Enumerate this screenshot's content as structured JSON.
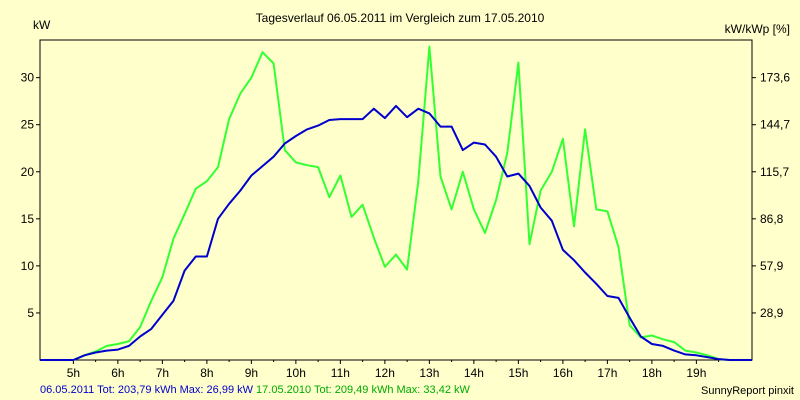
{
  "chart_data": {
    "type": "line",
    "title": "Tagesverlauf 06.05.2011 im Vergleich zum 17.05.2010",
    "ylabel_left": "kW",
    "ylabel_right": "kW/kWp [%]",
    "x_ticks": [
      "5h",
      "6h",
      "7h",
      "8h",
      "9h",
      "10h",
      "11h",
      "12h",
      "13h",
      "14h",
      "15h",
      "16h",
      "17h",
      "18h",
      "19h"
    ],
    "x_range_hours": [
      4.25,
      20.25
    ],
    "y_range": [
      0,
      34
    ],
    "y_ticks": [
      5,
      10,
      15,
      20,
      25,
      30
    ],
    "y2_ticks": [
      "28,9",
      "57,9",
      "86,8",
      "115,7",
      "144,7",
      "173,6"
    ],
    "series": [
      {
        "name": "06.05.2011",
        "color": "#0000cc",
        "points": [
          [
            4.25,
            0
          ],
          [
            5.0,
            0
          ],
          [
            5.25,
            0.5
          ],
          [
            5.5,
            0.8
          ],
          [
            5.75,
            1.0
          ],
          [
            6.0,
            1.1
          ],
          [
            6.25,
            1.5
          ],
          [
            6.5,
            2.5
          ],
          [
            6.75,
            3.3
          ],
          [
            7.0,
            4.8
          ],
          [
            7.25,
            6.3
          ],
          [
            7.5,
            9.5
          ],
          [
            7.75,
            11.0
          ],
          [
            8.0,
            11.0
          ],
          [
            8.25,
            15.0
          ],
          [
            8.5,
            16.6
          ],
          [
            8.75,
            18.0
          ],
          [
            9.0,
            19.6
          ],
          [
            9.25,
            20.6
          ],
          [
            9.5,
            21.6
          ],
          [
            9.75,
            23.0
          ],
          [
            10.0,
            23.8
          ],
          [
            10.25,
            24.5
          ],
          [
            10.5,
            24.9
          ],
          [
            10.75,
            25.5
          ],
          [
            11.0,
            25.6
          ],
          [
            11.25,
            25.6
          ],
          [
            11.5,
            25.6
          ],
          [
            11.75,
            26.7
          ],
          [
            12.0,
            25.7
          ],
          [
            12.25,
            27.0
          ],
          [
            12.5,
            25.8
          ],
          [
            12.75,
            26.7
          ],
          [
            13.0,
            26.2
          ],
          [
            13.25,
            24.8
          ],
          [
            13.5,
            24.8
          ],
          [
            13.75,
            22.3
          ],
          [
            14.0,
            23.1
          ],
          [
            14.25,
            22.9
          ],
          [
            14.5,
            21.6
          ],
          [
            14.75,
            19.5
          ],
          [
            15.0,
            19.8
          ],
          [
            15.25,
            18.5
          ],
          [
            15.5,
            16.2
          ],
          [
            15.75,
            14.8
          ],
          [
            16.0,
            11.7
          ],
          [
            16.25,
            10.6
          ],
          [
            16.5,
            9.3
          ],
          [
            16.75,
            8.1
          ],
          [
            17.0,
            6.8
          ],
          [
            17.25,
            6.6
          ],
          [
            17.5,
            4.5
          ],
          [
            17.75,
            2.5
          ],
          [
            18.0,
            1.7
          ],
          [
            18.25,
            1.5
          ],
          [
            18.5,
            1.0
          ],
          [
            18.75,
            0.6
          ],
          [
            19.0,
            0.5
          ],
          [
            19.25,
            0.3
          ],
          [
            19.5,
            0.1
          ],
          [
            19.75,
            0
          ],
          [
            20.25,
            0
          ]
        ]
      },
      {
        "name": "17.05.2010",
        "color": "#33ff33",
        "points": [
          [
            4.25,
            0
          ],
          [
            5.0,
            0
          ],
          [
            5.25,
            0.5
          ],
          [
            5.5,
            0.9
          ],
          [
            5.75,
            1.5
          ],
          [
            6.0,
            1.7
          ],
          [
            6.25,
            2.0
          ],
          [
            6.5,
            3.5
          ],
          [
            6.75,
            6.3
          ],
          [
            7.0,
            8.8
          ],
          [
            7.25,
            12.9
          ],
          [
            7.5,
            15.5
          ],
          [
            7.75,
            18.2
          ],
          [
            8.0,
            19.0
          ],
          [
            8.25,
            20.5
          ],
          [
            8.5,
            25.6
          ],
          [
            8.75,
            28.3
          ],
          [
            9.0,
            30.0
          ],
          [
            9.25,
            32.7
          ],
          [
            9.5,
            31.5
          ],
          [
            9.75,
            22.3
          ],
          [
            10.0,
            21.0
          ],
          [
            10.25,
            20.7
          ],
          [
            10.5,
            20.5
          ],
          [
            10.75,
            17.3
          ],
          [
            11.0,
            19.6
          ],
          [
            11.25,
            15.2
          ],
          [
            11.5,
            16.5
          ],
          [
            11.75,
            13.0
          ],
          [
            12.0,
            9.9
          ],
          [
            12.25,
            11.2
          ],
          [
            12.5,
            9.6
          ],
          [
            12.75,
            19.0
          ],
          [
            13.0,
            33.3
          ],
          [
            13.25,
            19.5
          ],
          [
            13.5,
            16.0
          ],
          [
            13.75,
            20.0
          ],
          [
            14.0,
            16.0
          ],
          [
            14.25,
            13.5
          ],
          [
            14.5,
            17.0
          ],
          [
            14.75,
            22.0
          ],
          [
            15.0,
            31.6
          ],
          [
            15.25,
            12.3
          ],
          [
            15.5,
            18.0
          ],
          [
            15.75,
            20.0
          ],
          [
            16.0,
            23.5
          ],
          [
            16.25,
            14.2
          ],
          [
            16.5,
            24.5
          ],
          [
            16.75,
            16.0
          ],
          [
            17.0,
            15.8
          ],
          [
            17.25,
            12.0
          ],
          [
            17.5,
            3.7
          ],
          [
            17.75,
            2.4
          ],
          [
            18.0,
            2.6
          ],
          [
            18.25,
            2.2
          ],
          [
            18.5,
            1.9
          ],
          [
            18.75,
            1.0
          ],
          [
            19.0,
            0.8
          ],
          [
            19.25,
            0.5
          ],
          [
            19.5,
            0.1
          ],
          [
            19.75,
            0
          ],
          [
            20.25,
            0
          ]
        ]
      }
    ],
    "footer": [
      {
        "text": "06.05.2011 Tot: 203,79 kWh Max: 26,99 kW",
        "color": "#0000cc"
      },
      {
        "text": " 17.05.2010 Tot: 209,49 kWh Max: 33,42 kW",
        "color": "#00aa00"
      }
    ],
    "credit": "SunnyReport pinxit",
    "grid": false
  }
}
